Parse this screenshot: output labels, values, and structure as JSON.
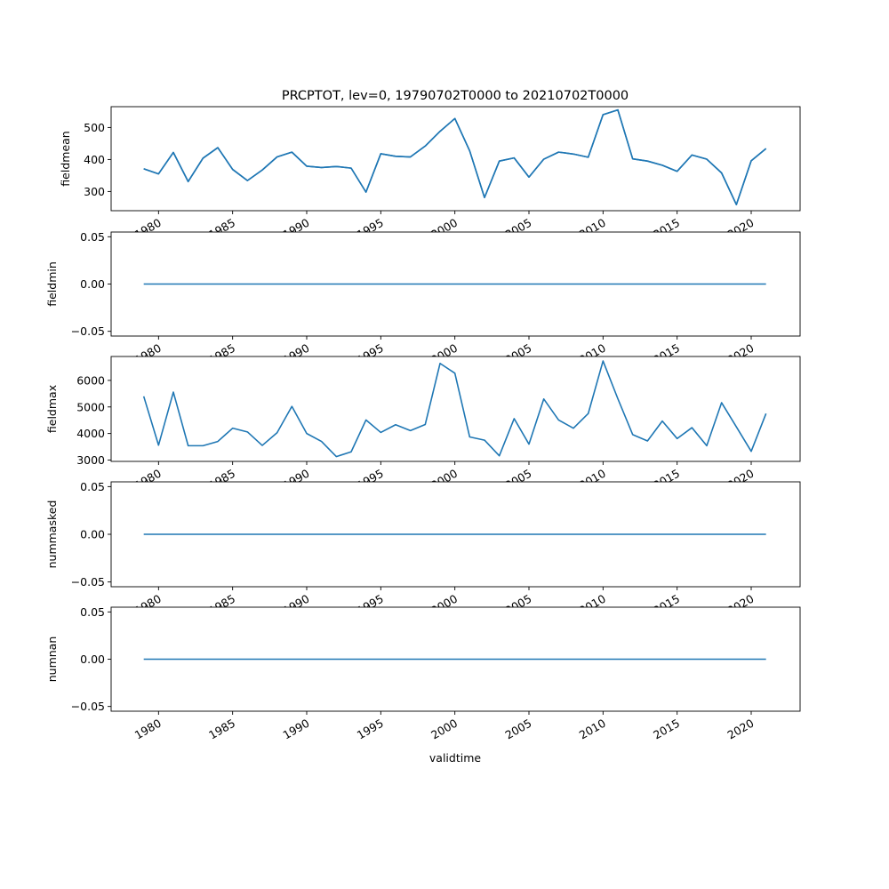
{
  "figure": {
    "title": "PRCPTOT, lev=0, 19790702T0000 to 20210702T0000",
    "xlabel": "validtime",
    "line_color": "#1f77b4"
  },
  "chart_data": [
    {
      "type": "line",
      "ylabel": "fieldmean",
      "x": [
        1979,
        1980,
        1981,
        1982,
        1983,
        1984,
        1985,
        1986,
        1987,
        1988,
        1989,
        1990,
        1991,
        1992,
        1993,
        1994,
        1995,
        1996,
        1997,
        1998,
        1999,
        2000,
        2001,
        2002,
        2003,
        2004,
        2005,
        2006,
        2007,
        2008,
        2009,
        2010,
        2011,
        2012,
        2013,
        2014,
        2015,
        2016,
        2017,
        2018,
        2019,
        2020,
        2021
      ],
      "values": [
        371,
        355,
        422,
        331,
        404,
        437,
        369,
        334,
        367,
        408,
        423,
        379,
        375,
        378,
        373,
        298,
        418,
        410,
        408,
        442,
        488,
        528,
        427,
        281,
        395,
        405,
        345,
        401,
        423,
        417,
        407,
        540,
        555,
        402,
        395,
        382,
        363,
        414,
        401,
        358,
        259,
        396,
        434
      ],
      "yticks": [
        300,
        400,
        500
      ],
      "ylim": [
        240,
        565
      ]
    },
    {
      "type": "line",
      "ylabel": "fieldmin",
      "x": [
        1979,
        2021
      ],
      "values": [
        0.0,
        0.0
      ],
      "yticks": [
        -0.05,
        0.0,
        0.05
      ],
      "ytick_labels": [
        "−0.05",
        "0.00",
        "0.05"
      ],
      "ylim": [
        -0.055,
        0.055
      ]
    },
    {
      "type": "line",
      "ylabel": "fieldmax",
      "x": [
        1979,
        1980,
        1981,
        1982,
        1983,
        1984,
        1985,
        1986,
        1987,
        1988,
        1989,
        1990,
        1991,
        1992,
        1993,
        1994,
        1995,
        1996,
        1997,
        1998,
        1999,
        2000,
        2001,
        2002,
        2003,
        2004,
        2005,
        2006,
        2007,
        2008,
        2009,
        2010,
        2011,
        2012,
        2013,
        2014,
        2015,
        2016,
        2017,
        2018,
        2019,
        2020,
        2021
      ],
      "values": [
        5400,
        3560,
        5560,
        3540,
        3540,
        3700,
        4200,
        4060,
        3550,
        4030,
        5020,
        4000,
        3700,
        3130,
        3310,
        4510,
        4040,
        4330,
        4110,
        4340,
        6640,
        6270,
        3870,
        3750,
        3160,
        4560,
        3600,
        5300,
        4510,
        4200,
        4750,
        6730,
        5310,
        3960,
        3720,
        4470,
        3810,
        4220,
        3540,
        5160,
        4250,
        3330,
        4750
      ],
      "yticks": [
        3000,
        4000,
        5000,
        6000
      ],
      "ylim": [
        2950,
        6900
      ]
    },
    {
      "type": "line",
      "ylabel": "nummasked",
      "x": [
        1979,
        2021
      ],
      "values": [
        0.0,
        0.0
      ],
      "yticks": [
        -0.05,
        0.0,
        0.05
      ],
      "ytick_labels": [
        "−0.05",
        "0.00",
        "0.05"
      ],
      "ylim": [
        -0.055,
        0.055
      ]
    },
    {
      "type": "line",
      "ylabel": "numnan",
      "x": [
        1979,
        2021
      ],
      "values": [
        0.0,
        0.0
      ],
      "yticks": [
        -0.05,
        0.0,
        0.05
      ],
      "ytick_labels": [
        "−0.05",
        "0.00",
        "0.05"
      ],
      "ylim": [
        -0.055,
        0.055
      ]
    }
  ],
  "x_axis": {
    "xlim": [
      1976.8,
      2023.3
    ],
    "ticks": [
      1980,
      1985,
      1990,
      1995,
      2000,
      2005,
      2010,
      2015,
      2020
    ],
    "tick_labels": [
      "1980",
      "1985",
      "1990",
      "1995",
      "2000",
      "2005",
      "2010",
      "2015",
      "2020"
    ]
  }
}
